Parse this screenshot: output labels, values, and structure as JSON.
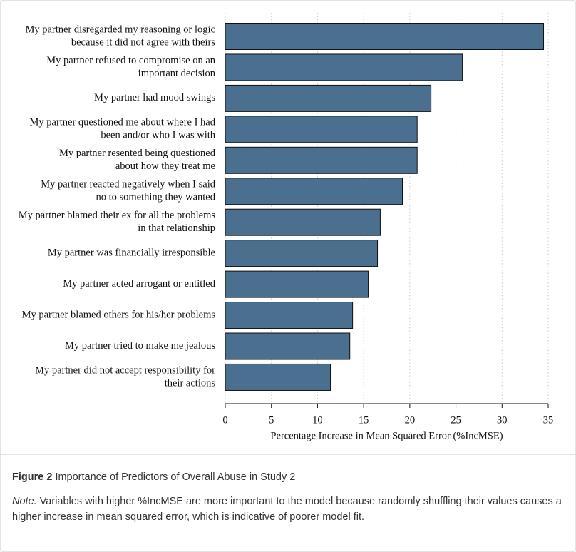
{
  "chart_data": {
    "type": "bar",
    "orientation": "horizontal",
    "categories": [
      [
        "My partner disregarded my reasoning or logic",
        "because it did not agree with theirs"
      ],
      [
        "My partner refused to compromise on an",
        "important decision"
      ],
      [
        "My partner had mood swings"
      ],
      [
        "My partner questioned me about where I had",
        "been and/or who I was with"
      ],
      [
        "My partner resented being questioned",
        "about how they treat me"
      ],
      [
        "My partner reacted negatively when I said",
        "no to something they wanted"
      ],
      [
        "My partner blamed their ex for all the problems",
        "in that relationship"
      ],
      [
        "My partner was financially irresponsible"
      ],
      [
        "My partner acted arrogant or entitled"
      ],
      [
        "My partner blamed others for his/her problems"
      ],
      [
        "My partner tried to make me jealous"
      ],
      [
        "My partner did not accept responsibility for",
        "their actions"
      ]
    ],
    "values": [
      34.5,
      25.7,
      22.3,
      20.8,
      20.8,
      19.2,
      16.8,
      16.5,
      15.5,
      13.8,
      13.5,
      11.4
    ],
    "color": "#4a6f8f",
    "xlabel": "Percentage Increase in Mean Squared Error (%IncMSE)",
    "xlim": [
      0,
      35
    ],
    "xticks": [
      0,
      5,
      10,
      15,
      20,
      25,
      30,
      35
    ],
    "grid": true
  },
  "caption": {
    "figure_label": "Figure 2",
    "title": "Importance of Predictors of Overall Abuse in Study 2",
    "note_label": "Note.",
    "note": "Variables with higher %IncMSE are more important to the model because randomly shuffling their values causes a higher increase in mean squared error, which is indicative of poorer model fit."
  }
}
